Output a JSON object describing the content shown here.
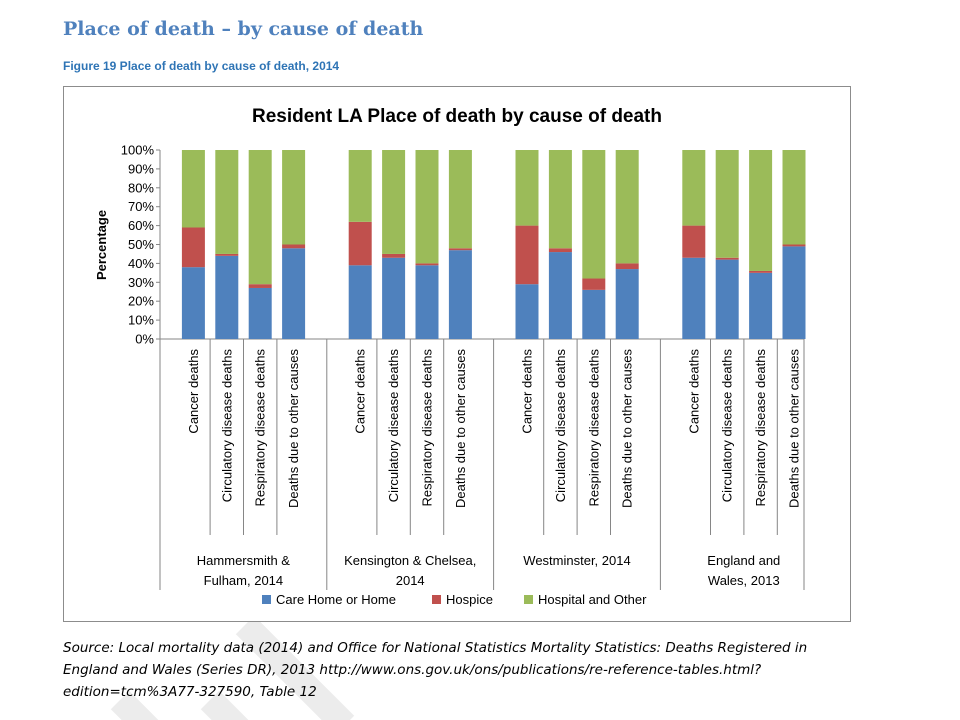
{
  "page": {
    "heading": "Place of death – by cause of death",
    "caption": "Figure 19 Place of death by cause of death, 2014",
    "source": "Source: Local mortality data (2014) and Office for National Statistics Mortality Statistics: Deaths Registered in England and Wales (Series DR), 2013 http://www.ons.gov.uk/ons/publications/re-reference-tables.html?edition=tcm%3A77-327590, Table 12"
  },
  "chart_data": {
    "type": "bar",
    "stacked": true,
    "title": "Resident LA Place of death by cause of death",
    "ylabel": "Percentage",
    "ylim": [
      0,
      100
    ],
    "yticks": [
      "0%",
      "10%",
      "20%",
      "30%",
      "40%",
      "50%",
      "60%",
      "70%",
      "80%",
      "90%",
      "100%"
    ],
    "grid": false,
    "legend_position": "bottom",
    "groups": [
      {
        "label": "Hammersmith & Fulham, 2014",
        "label_lines": [
          "Hammersmith &",
          "Fulham, 2014"
        ]
      },
      {
        "label": "Kensington & Chelsea, 2014",
        "label_lines": [
          "Kensington & Chelsea,",
          "2014"
        ]
      },
      {
        "label": "Westminster, 2014",
        "label_lines": [
          "Westminster, 2014"
        ]
      },
      {
        "label": "England and Wales, 2013",
        "label_lines": [
          "England and",
          "Wales, 2013"
        ]
      }
    ],
    "categories": [
      "Cancer deaths",
      "Circulatory disease deaths",
      "Respiratory disease deaths",
      "Deaths due to other causes",
      "Cancer deaths",
      "Circulatory disease deaths",
      "Respiratory disease deaths",
      "Deaths due to other causes",
      "Cancer deaths",
      "Circulatory disease deaths",
      "Respiratory disease deaths",
      "Deaths due to other causes",
      "Cancer deaths",
      "Circulatory disease deaths",
      "Respiratory disease deaths",
      "Deaths due to other causes"
    ],
    "series": [
      {
        "name": "Care Home or Home",
        "color": "#4f81bd",
        "values": [
          38,
          44,
          27,
          48,
          39,
          43,
          39,
          47,
          29,
          46,
          26,
          37,
          43,
          42,
          35,
          49
        ]
      },
      {
        "name": "Hospice",
        "color": "#c0504d",
        "values": [
          21,
          1,
          2,
          2,
          23,
          2,
          1,
          1,
          31,
          2,
          6,
          3,
          17,
          1,
          1,
          1
        ]
      },
      {
        "name": "Hospital and Other",
        "color": "#9bbb59",
        "values": [
          41,
          55,
          71,
          50,
          38,
          55,
          60,
          52,
          40,
          52,
          68,
          60,
          40,
          57,
          64,
          50
        ]
      }
    ]
  }
}
